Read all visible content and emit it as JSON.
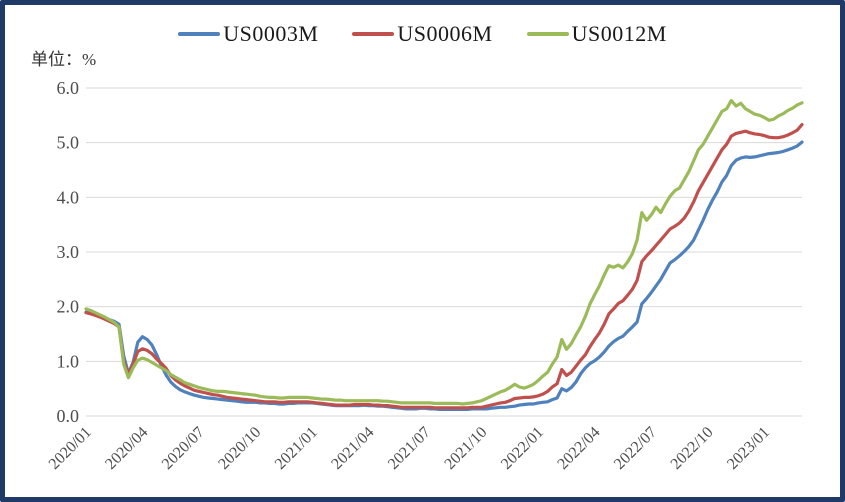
{
  "window": {
    "border_color": "#1f3a66",
    "background": "#ffffff"
  },
  "chart_data": {
    "type": "line",
    "title": "",
    "unit_label": "单位：%",
    "grid": "horizontal",
    "legend_position": "top",
    "ylim": [
      0.0,
      6.0
    ],
    "y_tick_labels": [
      "0.0",
      "1.0",
      "2.0",
      "3.0",
      "4.0",
      "5.0",
      "6.0"
    ],
    "x_tick_labels": [
      "2020/01",
      "2020/04",
      "2020/07",
      "2020/10",
      "2021/01",
      "2021/04",
      "2021/07",
      "2021/10",
      "2022/01",
      "2022/04",
      "2022/07",
      "2022/10",
      "2023/01"
    ],
    "x_start": "2020/01",
    "x_end": "2023/03",
    "x_step_months": 0.25,
    "x_total_months": 38,
    "series": [
      {
        "name": "US0003M",
        "color": "#4f81bd",
        "values": [
          1.9,
          1.88,
          1.85,
          1.82,
          1.79,
          1.76,
          1.73,
          1.68,
          1.1,
          0.78,
          0.98,
          1.35,
          1.45,
          1.4,
          1.3,
          1.12,
          0.92,
          0.75,
          0.62,
          0.54,
          0.48,
          0.44,
          0.41,
          0.38,
          0.36,
          0.34,
          0.33,
          0.32,
          0.31,
          0.3,
          0.29,
          0.28,
          0.27,
          0.26,
          0.25,
          0.25,
          0.25,
          0.24,
          0.24,
          0.23,
          0.23,
          0.22,
          0.22,
          0.23,
          0.23,
          0.24,
          0.24,
          0.24,
          0.24,
          0.23,
          0.22,
          0.21,
          0.2,
          0.19,
          0.19,
          0.19,
          0.19,
          0.19,
          0.19,
          0.2,
          0.19,
          0.19,
          0.18,
          0.18,
          0.17,
          0.16,
          0.15,
          0.14,
          0.13,
          0.13,
          0.13,
          0.14,
          0.14,
          0.13,
          0.13,
          0.12,
          0.12,
          0.12,
          0.12,
          0.12,
          0.12,
          0.12,
          0.13,
          0.13,
          0.13,
          0.13,
          0.14,
          0.15,
          0.16,
          0.16,
          0.17,
          0.18,
          0.2,
          0.21,
          0.22,
          0.22,
          0.24,
          0.25,
          0.26,
          0.3,
          0.33,
          0.5,
          0.46,
          0.52,
          0.62,
          0.77,
          0.88,
          0.96,
          1.01,
          1.08,
          1.17,
          1.28,
          1.36,
          1.42,
          1.46,
          1.55,
          1.63,
          1.72,
          2.05,
          2.15,
          2.26,
          2.38,
          2.5,
          2.65,
          2.8,
          2.86,
          2.93,
          3.01,
          3.1,
          3.22,
          3.4,
          3.58,
          3.78,
          3.95,
          4.1,
          4.28,
          4.4,
          4.58,
          4.68,
          4.72,
          4.74,
          4.73,
          4.74,
          4.76,
          4.78,
          4.8,
          4.81,
          4.82,
          4.84,
          4.87,
          4.9,
          4.94,
          5.01
        ]
      },
      {
        "name": "US0006M",
        "color": "#c0504d",
        "values": [
          1.89,
          1.87,
          1.84,
          1.81,
          1.77,
          1.73,
          1.69,
          1.63,
          1.0,
          0.76,
          0.95,
          1.18,
          1.23,
          1.2,
          1.14,
          1.04,
          0.96,
          0.87,
          0.74,
          0.66,
          0.6,
          0.55,
          0.51,
          0.47,
          0.45,
          0.43,
          0.41,
          0.39,
          0.38,
          0.36,
          0.34,
          0.33,
          0.32,
          0.31,
          0.3,
          0.29,
          0.28,
          0.27,
          0.26,
          0.26,
          0.26,
          0.25,
          0.25,
          0.26,
          0.26,
          0.26,
          0.26,
          0.26,
          0.25,
          0.24,
          0.23,
          0.22,
          0.21,
          0.2,
          0.2,
          0.2,
          0.2,
          0.21,
          0.21,
          0.21,
          0.21,
          0.2,
          0.2,
          0.19,
          0.19,
          0.18,
          0.17,
          0.16,
          0.16,
          0.16,
          0.16,
          0.16,
          0.16,
          0.16,
          0.15,
          0.15,
          0.15,
          0.15,
          0.15,
          0.15,
          0.15,
          0.15,
          0.16,
          0.16,
          0.16,
          0.18,
          0.2,
          0.22,
          0.24,
          0.25,
          0.28,
          0.32,
          0.33,
          0.34,
          0.34,
          0.35,
          0.37,
          0.4,
          0.45,
          0.53,
          0.59,
          0.85,
          0.74,
          0.8,
          0.91,
          1.02,
          1.12,
          1.27,
          1.4,
          1.52,
          1.68,
          1.87,
          1.96,
          2.06,
          2.11,
          2.21,
          2.32,
          2.48,
          2.82,
          2.93,
          3.02,
          3.12,
          3.22,
          3.32,
          3.42,
          3.47,
          3.53,
          3.62,
          3.75,
          3.92,
          4.12,
          4.27,
          4.42,
          4.57,
          4.72,
          4.87,
          4.97,
          5.12,
          5.17,
          5.19,
          5.21,
          5.18,
          5.16,
          5.15,
          5.13,
          5.1,
          5.09,
          5.09,
          5.11,
          5.14,
          5.18,
          5.23,
          5.33
        ]
      },
      {
        "name": "US0012M",
        "color": "#9bbb59",
        "values": [
          1.96,
          1.93,
          1.89,
          1.85,
          1.81,
          1.76,
          1.71,
          1.63,
          0.95,
          0.7,
          0.88,
          1.02,
          1.06,
          1.03,
          0.98,
          0.93,
          0.88,
          0.83,
          0.76,
          0.71,
          0.66,
          0.61,
          0.58,
          0.55,
          0.52,
          0.5,
          0.48,
          0.46,
          0.45,
          0.45,
          0.44,
          0.43,
          0.42,
          0.41,
          0.4,
          0.39,
          0.38,
          0.36,
          0.35,
          0.34,
          0.34,
          0.33,
          0.33,
          0.34,
          0.34,
          0.34,
          0.34,
          0.34,
          0.33,
          0.32,
          0.31,
          0.31,
          0.3,
          0.29,
          0.29,
          0.28,
          0.28,
          0.28,
          0.28,
          0.28,
          0.28,
          0.28,
          0.28,
          0.27,
          0.27,
          0.26,
          0.25,
          0.24,
          0.24,
          0.24,
          0.24,
          0.24,
          0.24,
          0.24,
          0.23,
          0.23,
          0.23,
          0.23,
          0.23,
          0.23,
          0.22,
          0.23,
          0.24,
          0.26,
          0.28,
          0.32,
          0.36,
          0.4,
          0.44,
          0.47,
          0.52,
          0.58,
          0.53,
          0.51,
          0.54,
          0.58,
          0.65,
          0.73,
          0.8,
          0.95,
          1.08,
          1.4,
          1.22,
          1.32,
          1.48,
          1.63,
          1.82,
          2.05,
          2.22,
          2.38,
          2.58,
          2.75,
          2.72,
          2.76,
          2.71,
          2.82,
          2.97,
          3.22,
          3.72,
          3.58,
          3.68,
          3.82,
          3.72,
          3.88,
          4.02,
          4.12,
          4.17,
          4.32,
          4.47,
          4.67,
          4.87,
          4.97,
          5.12,
          5.27,
          5.42,
          5.57,
          5.62,
          5.77,
          5.67,
          5.72,
          5.62,
          5.57,
          5.52,
          5.5,
          5.46,
          5.41,
          5.43,
          5.49,
          5.53,
          5.59,
          5.63,
          5.69,
          5.73
        ]
      }
    ]
  }
}
